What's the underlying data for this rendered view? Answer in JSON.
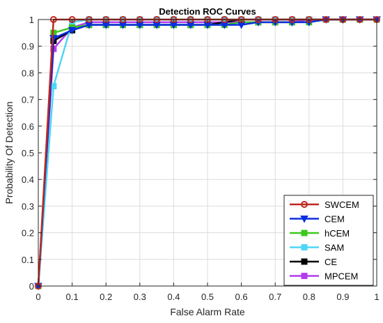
{
  "chart_data": {
    "type": "line",
    "title": "Detection ROC Curves",
    "xlabel": "False Alarm Rate",
    "ylabel": "Probability Of Detection",
    "xlim": [
      0,
      1
    ],
    "ylim": [
      0,
      1
    ],
    "xticks": [
      0,
      0.1,
      0.2,
      0.3,
      0.4,
      0.5,
      0.6,
      0.7,
      0.8,
      0.9,
      1
    ],
    "yticks": [
      0,
      0.1,
      0.2,
      0.3,
      0.4,
      0.5,
      0.6,
      0.7,
      0.8,
      0.9,
      1
    ],
    "xtick_labels": [
      "0",
      "0.1",
      "0.2",
      "0.3",
      "0.4",
      "0.5",
      "0.6",
      "0.7",
      "0.8",
      "0.9",
      "1"
    ],
    "ytick_labels": [
      "0",
      "0.1",
      "0.2",
      "0.3",
      "0.4",
      "0.5",
      "0.6",
      "0.7",
      "0.8",
      "0.9",
      "1"
    ],
    "grid": true,
    "legend_position": "bottom-right",
    "x": [
      0,
      0.045,
      0.1,
      0.15,
      0.2,
      0.25,
      0.3,
      0.35,
      0.4,
      0.45,
      0.5,
      0.55,
      0.6,
      0.65,
      0.7,
      0.75,
      0.8,
      0.85,
      0.9,
      0.95,
      1
    ],
    "series": [
      {
        "name": "SWCEM",
        "color": "#c0281e",
        "marker": "circle",
        "values": [
          0,
          1,
          1,
          1,
          1,
          1,
          1,
          1,
          1,
          1,
          1,
          1,
          1,
          1,
          1,
          1,
          1,
          1,
          1,
          1,
          1
        ]
      },
      {
        "name": "CEM",
        "color": "#0a2ee0",
        "marker": "triangle-down",
        "values": [
          0,
          0.93,
          0.96,
          0.98,
          0.98,
          0.98,
          0.98,
          0.98,
          0.98,
          0.98,
          0.98,
          0.98,
          0.98,
          0.99,
          0.99,
          0.99,
          0.99,
          1,
          1,
          1,
          1
        ]
      },
      {
        "name": "hCEM",
        "color": "#3cc81e",
        "marker": "square",
        "values": [
          0,
          0.95,
          0.97,
          0.98,
          0.98,
          0.98,
          0.98,
          0.98,
          0.98,
          0.98,
          0.98,
          0.98,
          0.99,
          0.99,
          0.99,
          0.99,
          0.99,
          1,
          1,
          1,
          1
        ]
      },
      {
        "name": "SAM",
        "color": "#4fd6f5",
        "marker": "square",
        "values": [
          0,
          0.75,
          0.99,
          1,
          1,
          1,
          1,
          1,
          1,
          1,
          1,
          1,
          1,
          1,
          1,
          1,
          1,
          1,
          1,
          1,
          1
        ]
      },
      {
        "name": "CE",
        "color": "#000000",
        "marker": "square",
        "values": [
          0,
          0.92,
          0.96,
          0.98,
          0.98,
          0.98,
          0.98,
          0.98,
          0.98,
          0.98,
          0.98,
          0.99,
          1,
          1,
          1,
          1,
          1,
          1,
          1,
          1,
          1
        ]
      },
      {
        "name": "MPCEM",
        "color": "#b43cf0",
        "marker": "square",
        "values": [
          0,
          0.89,
          0.97,
          0.99,
          0.99,
          0.99,
          0.99,
          0.99,
          0.99,
          0.99,
          0.99,
          0.99,
          0.99,
          0.99,
          0.99,
          0.99,
          1,
          1,
          1,
          1,
          1
        ]
      }
    ]
  }
}
